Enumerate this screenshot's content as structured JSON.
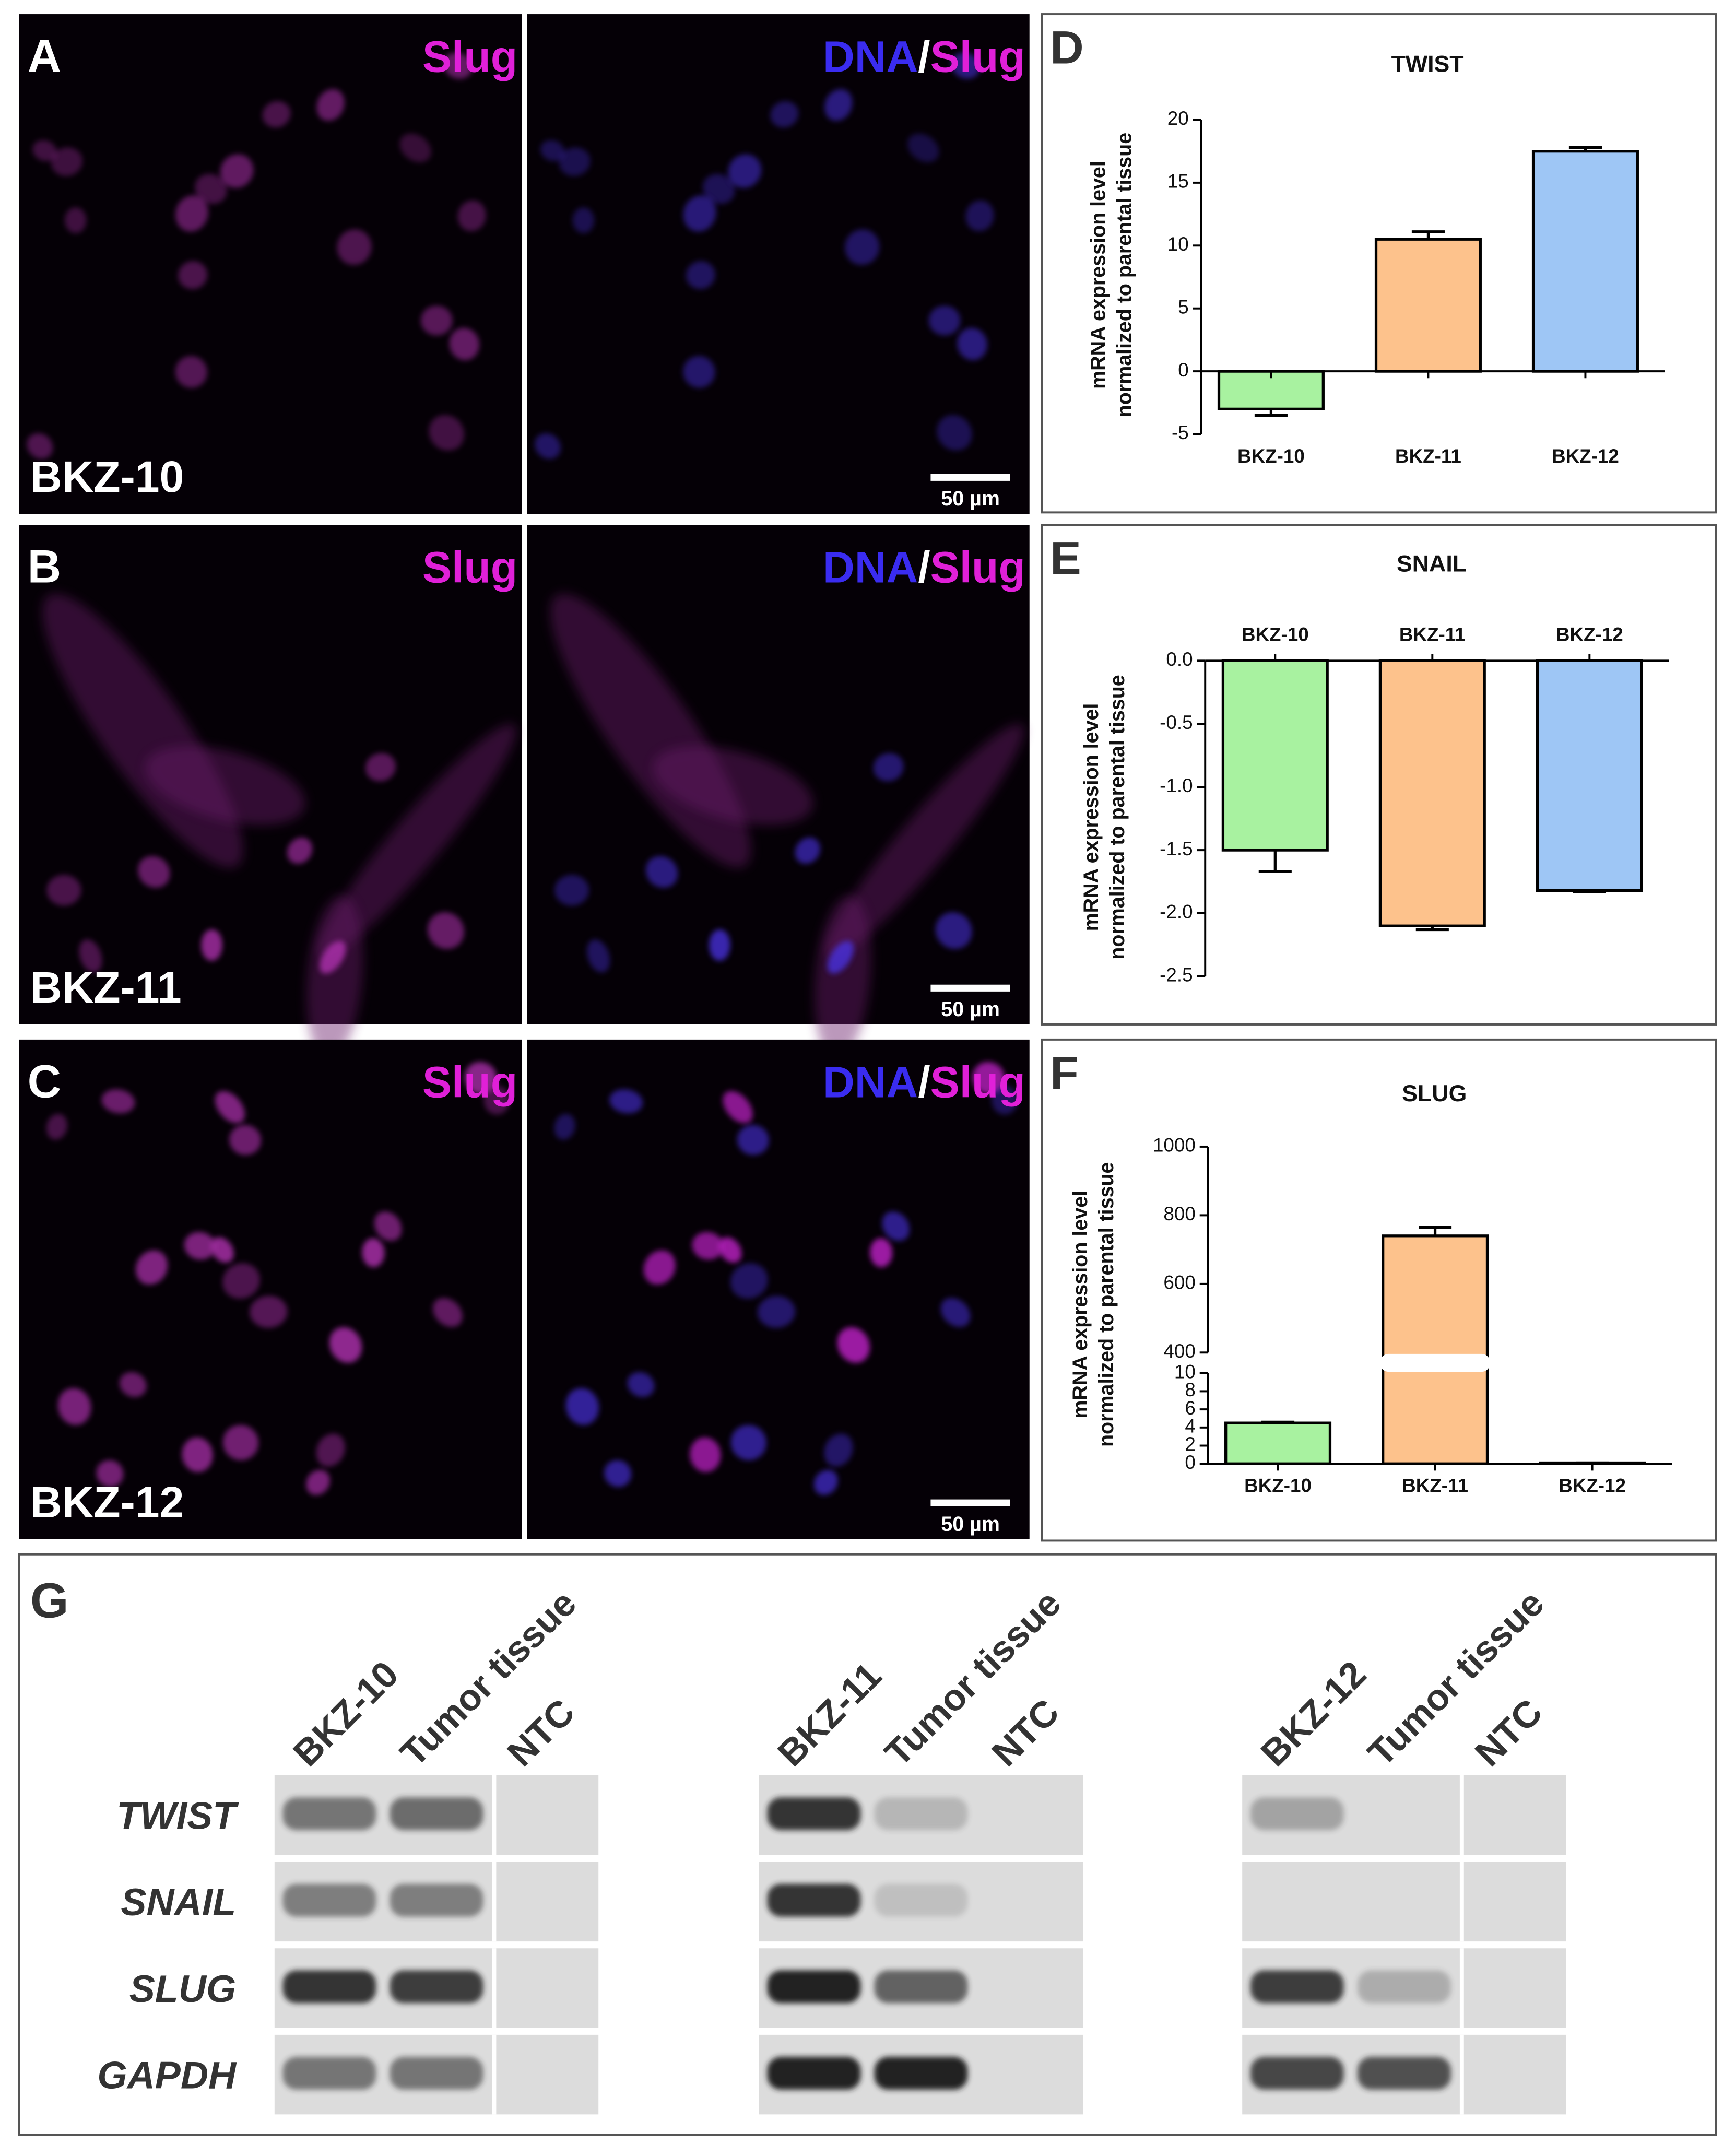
{
  "panels": [
    {
      "letter": "A",
      "sample": "BKZ-10"
    },
    {
      "letter": "B",
      "sample": "BKZ-11"
    },
    {
      "letter": "C",
      "sample": "BKZ-12"
    }
  ],
  "stain": "Slug",
  "dna": "DNA",
  "separator": "/",
  "scale_bar": "50 µm",
  "chart_data": [
    {
      "type": "bar",
      "panel": "D",
      "title": "TWIST",
      "y_label": [
        "mRNA expression level",
        "normalized to parental tissue"
      ],
      "categories": [
        "BKZ-10",
        "BKZ-11",
        "BKZ-12"
      ],
      "values": [
        -3,
        10.5,
        17.5
      ],
      "errors": [
        0.5,
        0.6,
        0.3
      ],
      "colors": [
        "#a8f2a0",
        "#fdc28c",
        "#9ec6f5"
      ],
      "ylim": [
        -5,
        20
      ],
      "yticks": [
        -5,
        0,
        5,
        10,
        15,
        20
      ]
    },
    {
      "type": "bar",
      "panel": "E",
      "title": "SNAIL",
      "y_label": [
        "mRNA expression level",
        "normalized to parental tissue"
      ],
      "categories": [
        "BKZ-10",
        "BKZ-11",
        "BKZ-12"
      ],
      "values": [
        -1.5,
        -2.1,
        -1.82
      ],
      "errors": [
        0.17,
        0.03,
        0.01
      ],
      "colors": [
        "#a8f2a0",
        "#fdc28c",
        "#9ec6f5"
      ],
      "ylim": [
        -2.5,
        0
      ],
      "yticks": [
        {
          "value": 0,
          "label": "0.0"
        },
        -0.5,
        {
          "value": -1,
          "label": "-1.0"
        },
        -1.5,
        {
          "value": -2,
          "label": "-2.0"
        },
        -2.5
      ]
    },
    {
      "type": "bar",
      "panel": "F",
      "title": "SLUG",
      "y_label": [
        "mRNA expression level",
        "normalized to parental tissue"
      ],
      "categories": [
        "BKZ-10",
        "BKZ-11",
        "BKZ-12"
      ],
      "values": [
        4.5,
        740,
        0.1
      ],
      "errors": [
        0.1,
        25,
        0
      ],
      "colors": [
        "#a8f2a0",
        "#fdc28c",
        "#9ec6f5"
      ],
      "ylim": [
        0,
        1000
      ],
      "ybreak": [
        10,
        400
      ],
      "yticks": [
        0,
        2,
        4,
        6,
        8,
        10,
        400,
        600,
        800,
        1000
      ]
    }
  ],
  "gel": {
    "letter": "G",
    "groups": [
      {
        "lanes": [
          "BKZ-10",
          "Tumor tissue",
          "NTC"
        ]
      },
      {
        "lanes": [
          "BKZ-11",
          "Tumor tissue",
          "NTC"
        ]
      },
      {
        "lanes": [
          "BKZ-12",
          "Tumor tissue",
          "NTC"
        ]
      }
    ],
    "genes": [
      "TWIST",
      "SNAIL",
      "SLUG",
      "GAPDH"
    ]
  }
}
